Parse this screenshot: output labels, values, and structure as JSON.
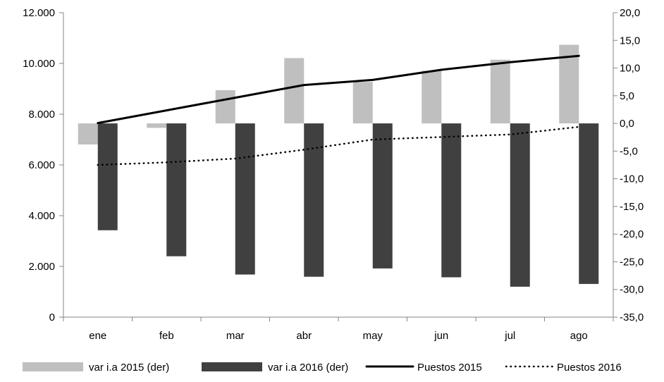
{
  "chart_data": {
    "type": "bar",
    "categories": [
      "ene",
      "feb",
      "mar",
      "abr",
      "may",
      "jun",
      "jul",
      "ago"
    ],
    "bar_series": [
      {
        "name": "var i.a 2015 (der)",
        "axis": "right",
        "color": "#bfbfbf",
        "values": [
          -3.8,
          -0.8,
          6.0,
          11.8,
          7.5,
          9.5,
          11.5,
          14.2
        ]
      },
      {
        "name": "var i.a 2016 (der)",
        "axis": "right",
        "color": "#404040",
        "values": [
          -19.3,
          -24.0,
          -27.3,
          -27.7,
          -26.2,
          -27.8,
          -29.5,
          -29.0
        ]
      }
    ],
    "line_series": [
      {
        "name": "Puestos 2015",
        "axis": "left",
        "style": "solid",
        "color": "#000000",
        "values": [
          7650,
          8150,
          8650,
          9150,
          9350,
          9750,
          10050,
          10300
        ]
      },
      {
        "name": "Puestos 2016",
        "axis": "left",
        "style": "dotted",
        "color": "#000000",
        "values": [
          6000,
          6100,
          6250,
          6600,
          7000,
          7100,
          7200,
          7500
        ]
      }
    ],
    "y_left": {
      "min": 0,
      "max": 12000,
      "step": 2000,
      "tick_labels": [
        "0",
        "2.000",
        "4.000",
        "6.000",
        "8.000",
        "10.000",
        "12.000"
      ]
    },
    "y_right": {
      "min": -35,
      "max": 20,
      "step": 5,
      "tick_labels": [
        "-35,0",
        "-30,0",
        "-25,0",
        "-20,0",
        "-15,0",
        "-10,0",
        "-5,0",
        "0,0",
        "5,0",
        "10,0",
        "15,0",
        "20,0"
      ]
    },
    "grid": false,
    "legend_position": "bottom"
  }
}
